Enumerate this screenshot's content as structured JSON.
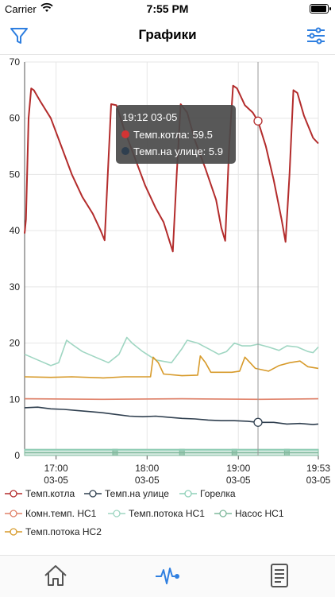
{
  "status_bar": {
    "carrier": "Carrier",
    "time": "7:55 PM"
  },
  "header": {
    "title": "Графики",
    "filter_icon": "funnel-icon",
    "settings_icon": "sliders-icon"
  },
  "colors": {
    "accent": "#2f7fe0",
    "boiler": "#b32c2c",
    "outside": "#2f3f4f",
    "burner": "#8fd0b8",
    "room_hc1": "#e0826a",
    "flow_hc1": "#9fd6c2",
    "pump_hc1": "#7fb89c",
    "flow_hc2": "#d79a2a"
  },
  "tooltip": {
    "time": "19:12 03-05",
    "rows": [
      {
        "label": "Темп.котла: 59.5",
        "color": "#d23434"
      },
      {
        "label": "Темп.на улице: 5.9",
        "color": "#2f3f4f"
      }
    ]
  },
  "chart_data": {
    "type": "line",
    "ylim": [
      0,
      70
    ],
    "yticks": [
      "0",
      "10",
      "20",
      "30",
      "40",
      "50",
      "60",
      "70"
    ],
    "xticks": [
      {
        "time": "17:00",
        "date": "03-05",
        "t": 0.12
      },
      {
        "time": "18:00",
        "date": "03-05",
        "t": 0.467
      },
      {
        "time": "19:00",
        "date": "03-05",
        "t": 0.815
      },
      {
        "time": "19:53",
        "date": "03-05",
        "t": 1.12
      }
    ],
    "x_range": [
      0,
      1.12
    ],
    "cursor_t": 0.89,
    "grid": true,
    "legend_position": "bottom",
    "series": [
      {
        "name": "Темп.котла",
        "color": "#b32c2c",
        "points": [
          [
            0,
            39.5
          ],
          [
            0.005,
            42
          ],
          [
            0.015,
            60
          ],
          [
            0.025,
            65.3
          ],
          [
            0.035,
            65
          ],
          [
            0.06,
            63
          ],
          [
            0.1,
            60
          ],
          [
            0.14,
            55
          ],
          [
            0.18,
            50
          ],
          [
            0.22,
            46
          ],
          [
            0.26,
            43
          ],
          [
            0.29,
            40
          ],
          [
            0.305,
            38.3
          ],
          [
            0.315,
            48
          ],
          [
            0.33,
            62.5
          ],
          [
            0.35,
            62.3
          ],
          [
            0.38,
            58
          ],
          [
            0.42,
            53
          ],
          [
            0.46,
            48
          ],
          [
            0.5,
            44
          ],
          [
            0.53,
            41.5
          ],
          [
            0.555,
            37.8
          ],
          [
            0.565,
            36.3
          ],
          [
            0.58,
            50
          ],
          [
            0.595,
            62.5
          ],
          [
            0.62,
            61
          ],
          [
            0.65,
            56
          ],
          [
            0.69,
            51
          ],
          [
            0.73,
            45.5
          ],
          [
            0.75,
            40.5
          ],
          [
            0.765,
            38.2
          ],
          [
            0.78,
            55
          ],
          [
            0.795,
            65.8
          ],
          [
            0.81,
            65.3
          ],
          [
            0.84,
            62.3
          ],
          [
            0.87,
            61
          ],
          [
            0.89,
            59.5
          ],
          [
            0.92,
            55
          ],
          [
            0.95,
            49
          ],
          [
            0.98,
            42
          ],
          [
            0.995,
            38
          ],
          [
            1.01,
            50
          ],
          [
            1.025,
            65
          ],
          [
            1.04,
            64.5
          ],
          [
            1.065,
            60.5
          ],
          [
            1.1,
            56.5
          ],
          [
            1.12,
            55.5
          ]
        ]
      },
      {
        "name": "Темп.на улице",
        "color": "#2f3f4f",
        "points": [
          [
            0,
            8.5
          ],
          [
            0.05,
            8.6
          ],
          [
            0.1,
            8.3
          ],
          [
            0.15,
            8.2
          ],
          [
            0.2,
            8.0
          ],
          [
            0.25,
            7.8
          ],
          [
            0.3,
            7.6
          ],
          [
            0.35,
            7.3
          ],
          [
            0.4,
            7.0
          ],
          [
            0.45,
            6.9
          ],
          [
            0.5,
            7.0
          ],
          [
            0.55,
            6.8
          ],
          [
            0.6,
            6.6
          ],
          [
            0.65,
            6.5
          ],
          [
            0.7,
            6.3
          ],
          [
            0.75,
            6.2
          ],
          [
            0.8,
            6.2
          ],
          [
            0.85,
            6.1
          ],
          [
            0.89,
            5.9
          ],
          [
            0.95,
            5.9
          ],
          [
            1.0,
            5.6
          ],
          [
            1.05,
            5.7
          ],
          [
            1.1,
            5.5
          ],
          [
            1.12,
            5.6
          ]
        ]
      },
      {
        "name": "Горелка",
        "color": "#8fd0b8",
        "points": [
          [
            0,
            1.0
          ],
          [
            1.12,
            1.0
          ]
        ]
      },
      {
        "name": "Комн.темп. НС1",
        "color": "#e0826a",
        "points": [
          [
            0,
            10.1
          ],
          [
            0.3,
            10.0
          ],
          [
            0.6,
            10.1
          ],
          [
            0.9,
            10.0
          ],
          [
            1.12,
            10.1
          ]
        ]
      },
      {
        "name": "Темп.потока НС1",
        "color": "#9fd6c2",
        "points": [
          [
            0,
            18
          ],
          [
            0.05,
            17
          ],
          [
            0.1,
            16
          ],
          [
            0.13,
            16.5
          ],
          [
            0.16,
            20.5
          ],
          [
            0.18,
            19.8
          ],
          [
            0.22,
            18.5
          ],
          [
            0.27,
            17.5
          ],
          [
            0.32,
            16.5
          ],
          [
            0.36,
            18
          ],
          [
            0.39,
            21
          ],
          [
            0.41,
            20
          ],
          [
            0.45,
            18.5
          ],
          [
            0.5,
            17
          ],
          [
            0.56,
            16.5
          ],
          [
            0.6,
            19
          ],
          [
            0.62,
            20.5
          ],
          [
            0.66,
            20
          ],
          [
            0.7,
            19
          ],
          [
            0.74,
            18
          ],
          [
            0.77,
            18.5
          ],
          [
            0.8,
            20
          ],
          [
            0.83,
            19.5
          ],
          [
            0.86,
            19.5
          ],
          [
            0.89,
            19.8
          ],
          [
            0.93,
            19.3
          ],
          [
            0.97,
            18.7
          ],
          [
            1.0,
            19.5
          ],
          [
            1.04,
            19.3
          ],
          [
            1.08,
            18.5
          ],
          [
            1.1,
            18.3
          ],
          [
            1.12,
            19.3
          ]
        ]
      },
      {
        "name": "Насос НС1",
        "color": "#7fb89c",
        "points": [
          [
            0,
            0.5
          ],
          [
            1.12,
            0.5
          ]
        ]
      },
      {
        "name": "Темп.потока НС2",
        "color": "#d79a2a",
        "points": [
          [
            0,
            14.0
          ],
          [
            0.1,
            13.9
          ],
          [
            0.18,
            14.0
          ],
          [
            0.3,
            13.8
          ],
          [
            0.38,
            14.0
          ],
          [
            0.48,
            14.0
          ],
          [
            0.49,
            17.5
          ],
          [
            0.51,
            16.5
          ],
          [
            0.53,
            14.5
          ],
          [
            0.6,
            14.2
          ],
          [
            0.66,
            14.3
          ],
          [
            0.67,
            17.7
          ],
          [
            0.69,
            16.5
          ],
          [
            0.71,
            14.8
          ],
          [
            0.79,
            14.8
          ],
          [
            0.82,
            15.0
          ],
          [
            0.84,
            17.5
          ],
          [
            0.86,
            16.5
          ],
          [
            0.88,
            15.5
          ],
          [
            0.93,
            15.0
          ],
          [
            0.97,
            16.0
          ],
          [
            1.01,
            16.5
          ],
          [
            1.05,
            16.8
          ],
          [
            1.08,
            15.8
          ],
          [
            1.12,
            15.5
          ]
        ]
      }
    ]
  },
  "legend": [
    {
      "label": "Темп.котла",
      "color": "#b32c2c"
    },
    {
      "label": "Темп.на улице",
      "color": "#2f3f4f"
    },
    {
      "label": "Горелка",
      "color": "#8fd0b8"
    },
    {
      "label": "Комн.темп. НС1",
      "color": "#e0826a"
    },
    {
      "label": "Темп.потока НС1",
      "color": "#9fd6c2"
    },
    {
      "label": "Насос НС1",
      "color": "#7fb89c"
    },
    {
      "label": "Темп.потока НС2",
      "color": "#d79a2a"
    }
  ],
  "tabbar": {
    "home_icon": "home-icon",
    "charts_icon": "pulse-chart-icon",
    "log_icon": "document-icon"
  }
}
